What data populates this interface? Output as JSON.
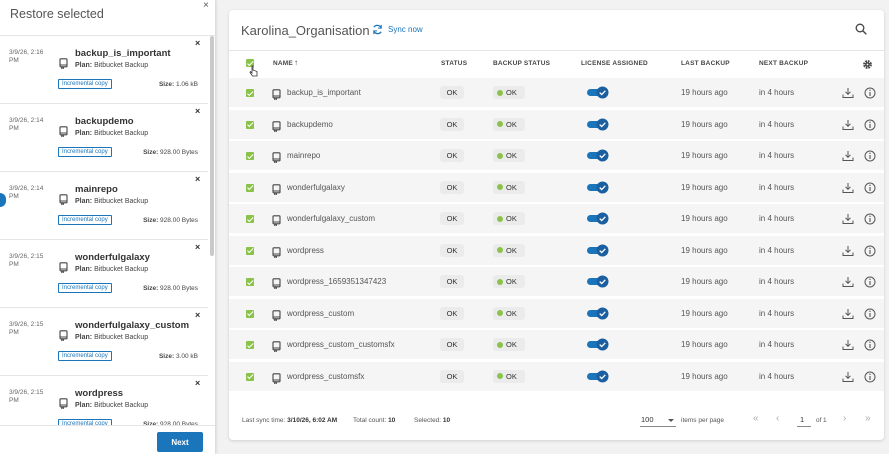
{
  "panel": {
    "title": "Restore selected",
    "close": "×",
    "items": [
      {
        "date": "3/9/26, 2:16 PM",
        "name": "backup_is_important",
        "plan_label": "Plan:",
        "plan": "Bitbucket Backup",
        "badge": "Incremental copy",
        "size_label": "Size:",
        "size": "1.06 kB"
      },
      {
        "date": "3/9/26, 2:14 PM",
        "name": "backupdemo",
        "plan_label": "Plan:",
        "plan": "Bitbucket Backup",
        "badge": "Incremental copy",
        "size_label": "Size:",
        "size": "928.00 Bytes"
      },
      {
        "date": "3/9/26, 2:14 PM",
        "name": "mainrepo",
        "plan_label": "Plan:",
        "plan": "Bitbucket Backup",
        "badge": "Incremental copy",
        "size_label": "Size:",
        "size": "928.00 Bytes"
      },
      {
        "date": "3/9/26, 2:15 PM",
        "name": "wonderfulgalaxy",
        "plan_label": "Plan:",
        "plan": "Bitbucket Backup",
        "badge": "Incremental copy",
        "size_label": "Size:",
        "size": "928.00 Bytes"
      },
      {
        "date": "3/9/26, 2:15 PM",
        "name": "wonderfulgalaxy_custom",
        "plan_label": "Plan:",
        "plan": "Bitbucket Backup",
        "badge": "Incremental copy",
        "size_label": "Size:",
        "size": "3.00 kB"
      },
      {
        "date": "3/9/26, 2:15 PM",
        "name": "wordpress",
        "plan_label": "Plan:",
        "plan": "Bitbucket Backup",
        "badge": "Incremental copy",
        "size_label": "Size:",
        "size": "928.00 Bytes"
      }
    ],
    "next": "Next"
  },
  "header": {
    "title": "Karolina_Organisation",
    "sync": "Sync now"
  },
  "table": {
    "columns": [
      "NAME",
      "STATUS",
      "BACKUP STATUS",
      "LICENSE ASSIGNED",
      "LAST BACKUP",
      "NEXT BACKUP"
    ],
    "sort_icon": "↑",
    "rows": [
      {
        "name": "backup_is_important",
        "status": "OK",
        "backup_status": "OK",
        "last_backup": "19 hours ago",
        "next_backup": "in 4 hours"
      },
      {
        "name": "backupdemo",
        "status": "OK",
        "backup_status": "OK",
        "last_backup": "19 hours ago",
        "next_backup": "in 4 hours"
      },
      {
        "name": "mainrepo",
        "status": "OK",
        "backup_status": "OK",
        "last_backup": "19 hours ago",
        "next_backup": "in 4 hours"
      },
      {
        "name": "wonderfulgalaxy",
        "status": "OK",
        "backup_status": "OK",
        "last_backup": "19 hours ago",
        "next_backup": "in 4 hours"
      },
      {
        "name": "wonderfulgalaxy_custom",
        "status": "OK",
        "backup_status": "OK",
        "last_backup": "19 hours ago",
        "next_backup": "in 4 hours"
      },
      {
        "name": "wordpress",
        "status": "OK",
        "backup_status": "OK",
        "last_backup": "19 hours ago",
        "next_backup": "in 4 hours"
      },
      {
        "name": "wordpress_1659351347423",
        "status": "OK",
        "backup_status": "OK",
        "last_backup": "19 hours ago",
        "next_backup": "in 4 hours"
      },
      {
        "name": "wordpress_custom",
        "status": "OK",
        "backup_status": "OK",
        "last_backup": "19 hours ago",
        "next_backup": "in 4 hours"
      },
      {
        "name": "wordpress_custom_customsfx",
        "status": "OK",
        "backup_status": "OK",
        "last_backup": "19 hours ago",
        "next_backup": "in 4 hours"
      },
      {
        "name": "wordpress_customsfx",
        "status": "OK",
        "backup_status": "OK",
        "last_backup": "19 hours ago",
        "next_backup": "in 4 hours"
      }
    ]
  },
  "footer": {
    "last_sync_label": "Last sync time:",
    "last_sync": "3/10/26, 6:02 AM",
    "total_label": "Total count:",
    "total": "10",
    "selected_label": "Selected:",
    "selected": "10",
    "per_page": "100",
    "per_page_label": "items per page",
    "page": "1",
    "of_label": "of",
    "pages": "1",
    "first": "«",
    "prev": "‹",
    "next": "›",
    "last": "»"
  }
}
